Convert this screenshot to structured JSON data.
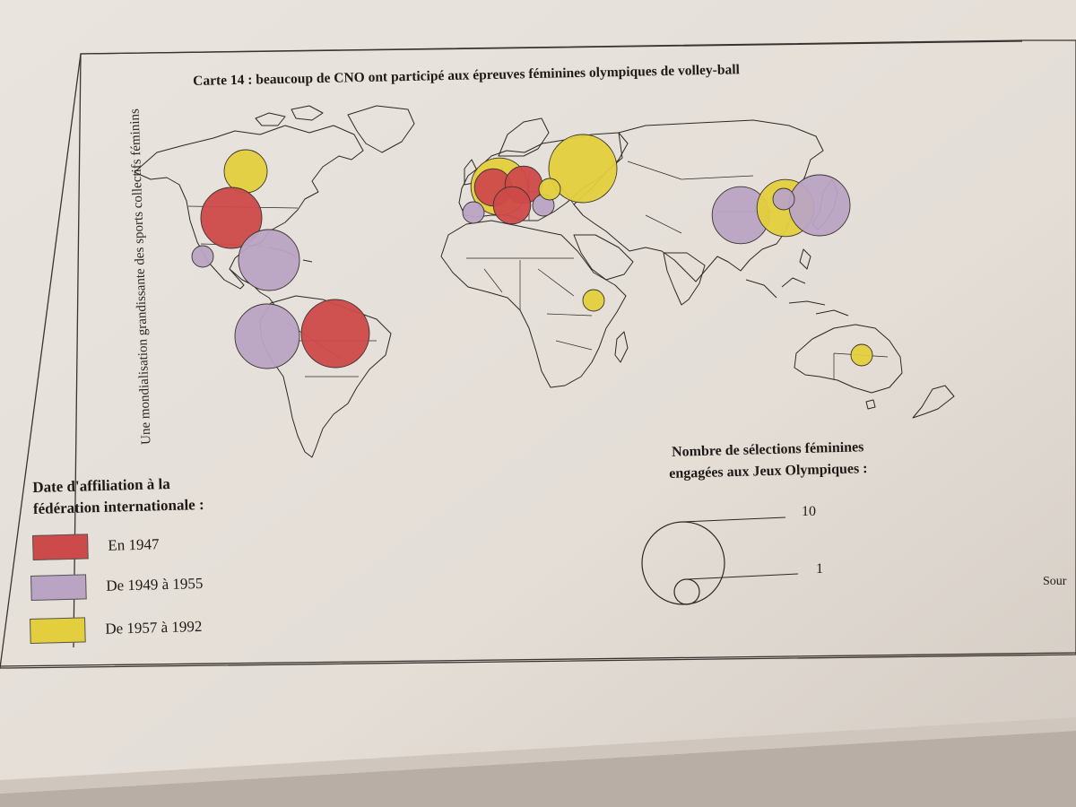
{
  "spine_text": "Une mondialisation grandissante des sports collectifs féminins",
  "title": "Carte 14 : beaucoup de CNO ont participé aux épreuves féminines olympiques de volley-ball",
  "legend": {
    "title_line1": "Date d'affiliation à la",
    "title_line2": "fédération internationale :",
    "items": [
      {
        "label": "En 1947",
        "color": "#cd4a4a"
      },
      {
        "label": "De 1949 à 1955",
        "color": "#b9a4c4"
      },
      {
        "label": "De 1957 à 1992",
        "color": "#e3cf3d"
      }
    ]
  },
  "size_legend": {
    "title_line1": "Nombre de sélections féminines",
    "title_line2": "engagées aux Jeux Olympiques :",
    "max_label": "10",
    "min_label": "1"
  },
  "source_text": "Sour",
  "map_symbols": [
    {
      "name": "canada-circle",
      "category": "De 1957 à 1992",
      "color": "#e3cf3d",
      "selections": 4
    },
    {
      "name": "usa-circle",
      "category": "En 1947",
      "color": "#cd4a4a",
      "selections": 8
    },
    {
      "name": "mexico-circle",
      "category": "De 1949 à 1955",
      "color": "#b9a4c4",
      "selections": 1
    },
    {
      "name": "cuba-circle",
      "category": "De 1949 à 1955",
      "color": "#b9a4c4",
      "selections": 8
    },
    {
      "name": "peru-circle",
      "category": "De 1949 à 1955",
      "color": "#b9a4c4",
      "selections": 9
    },
    {
      "name": "brazil-circle",
      "category": "En 1947",
      "color": "#cd4a4a",
      "selections": 10
    },
    {
      "name": "germany-circle",
      "category": "De 1957 à 1992",
      "color": "#e3cf3d",
      "selections": 7
    },
    {
      "name": "netherlands-circle",
      "category": "En 1947",
      "color": "#cd4a4a",
      "selections": 3
    },
    {
      "name": "poland-circle",
      "category": "En 1947",
      "color": "#cd4a4a",
      "selections": 3
    },
    {
      "name": "italy-circle",
      "category": "En 1947",
      "color": "#cd4a4a",
      "selections": 3
    },
    {
      "name": "spain-circle",
      "category": "De 1949 à 1955",
      "color": "#b9a4c4",
      "selections": 1
    },
    {
      "name": "bulgaria-circle",
      "category": "De 1949 à 1955",
      "color": "#b9a4c4",
      "selections": 1
    },
    {
      "name": "ukraine-circle",
      "category": "De 1957 à 1992",
      "color": "#e3cf3d",
      "selections": 1
    },
    {
      "name": "russia-circle",
      "category": "De 1957 à 1992",
      "color": "#e3cf3d",
      "selections": 10
    },
    {
      "name": "china-circle",
      "category": "De 1949 à 1955",
      "color": "#b9a4c4",
      "selections": 7
    },
    {
      "name": "korea-circle",
      "category": "De 1957 à 1992",
      "color": "#e3cf3d",
      "selections": 7
    },
    {
      "name": "north-korea-circle",
      "category": "De 1949 à 1955",
      "color": "#b9a4c4",
      "selections": 1
    },
    {
      "name": "japan-circle",
      "category": "De 1949 à 1955",
      "color": "#b9a4c4",
      "selections": 8
    },
    {
      "name": "kenya-circle",
      "category": "De 1957 à 1992",
      "color": "#e3cf3d",
      "selections": 1
    },
    {
      "name": "australia-circle",
      "category": "De 1957 à 1992",
      "color": "#e3cf3d",
      "selections": 1
    }
  ]
}
